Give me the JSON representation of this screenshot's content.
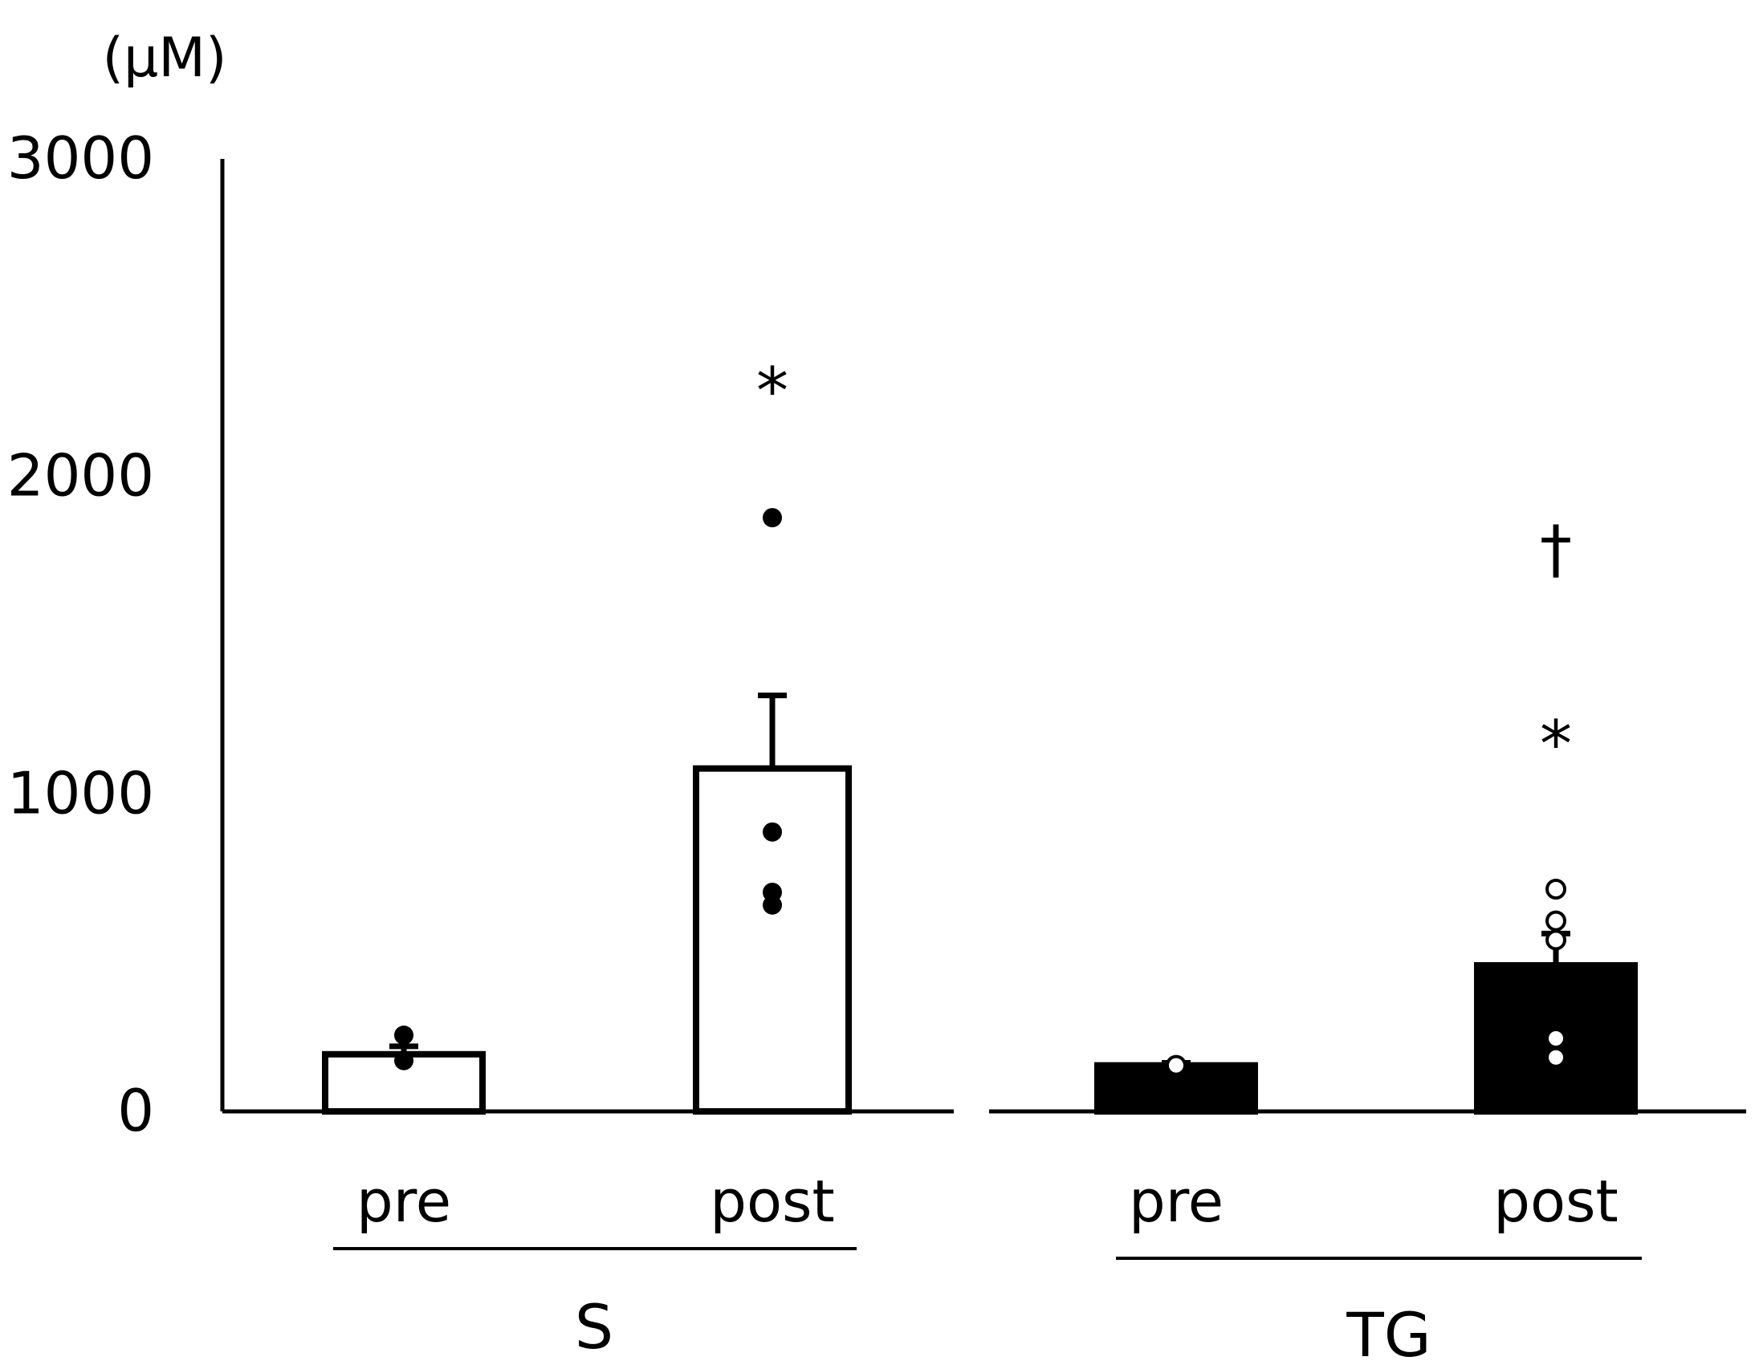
{
  "chart_data": {
    "type": "bar",
    "unit_label": "(μM)",
    "ylim": [
      0,
      3000
    ],
    "y_ticks": [
      "0",
      "1000",
      "2000",
      "3000"
    ],
    "grid": false,
    "groups": [
      {
        "name": "S",
        "bar_color": "#ffffff",
        "bars": [
          {
            "category": "pre",
            "value": 180,
            "error": 25,
            "points": [
              160,
              240
            ],
            "significance": []
          },
          {
            "category": "post",
            "value": 1080,
            "error": 230,
            "points": [
              1870,
              880,
              690,
              650
            ],
            "significance": [
              "*"
            ]
          }
        ]
      },
      {
        "name": "TG",
        "bar_color": "#000000",
        "bars": [
          {
            "category": "pre",
            "value": 145,
            "error": 8,
            "points": [
              145
            ],
            "significance": []
          },
          {
            "category": "post",
            "value": 460,
            "error": 100,
            "points": [
              700,
              600,
              540,
              230,
              170
            ],
            "significance": [
              "*",
              "†"
            ]
          }
        ]
      }
    ]
  }
}
